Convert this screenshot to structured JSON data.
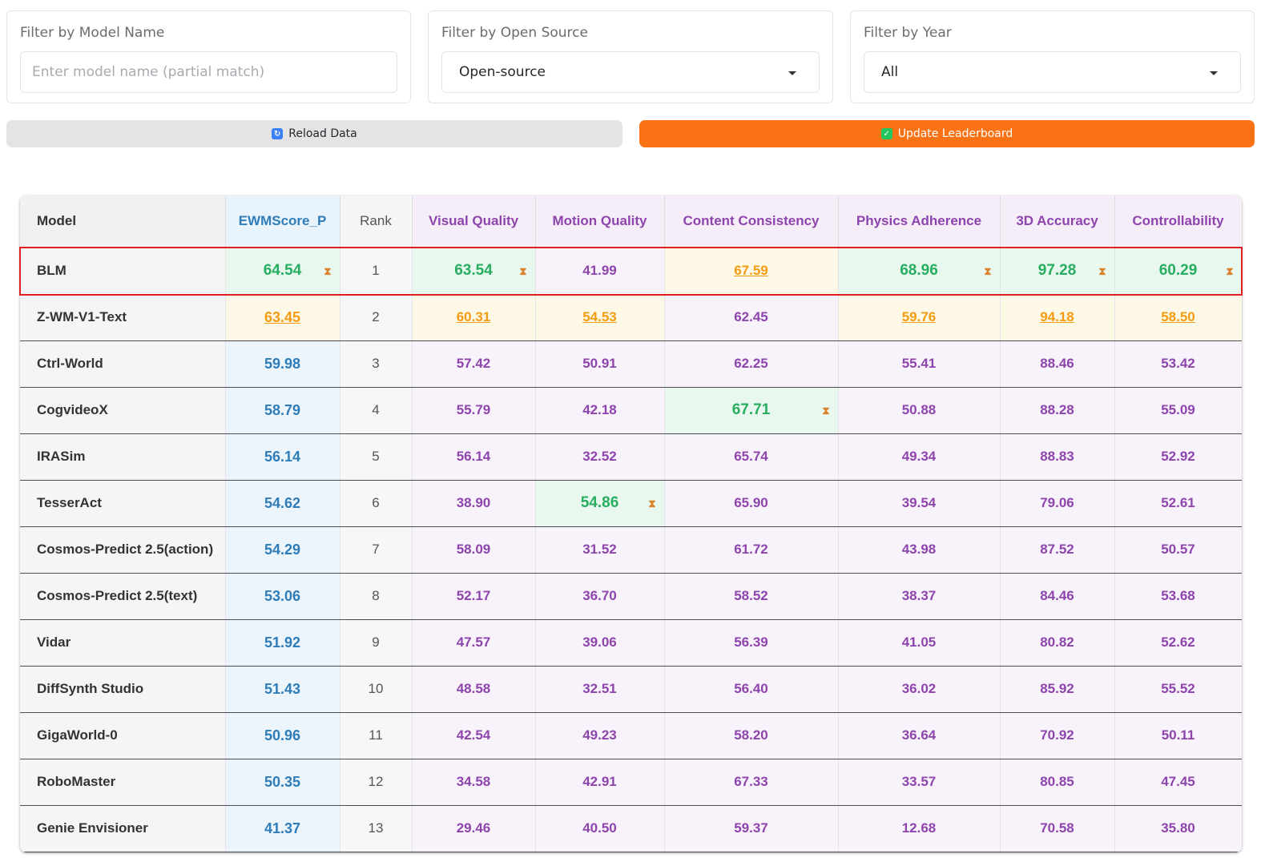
{
  "filters": {
    "model_name": {
      "label": "Filter by Model Name",
      "placeholder": "Enter model name (partial match)",
      "value": ""
    },
    "open_source": {
      "label": "Filter by Open Source",
      "value": "Open-source"
    },
    "year": {
      "label": "Filter by Year",
      "value": "All"
    }
  },
  "buttons": {
    "reload": "Reload Data",
    "update": "Update Leaderboard"
  },
  "table": {
    "columns": [
      "Model",
      "EWMScore_P",
      "Rank",
      "Visual Quality",
      "Motion Quality",
      "Content Consistency",
      "Physics Adherence",
      "3D Accuracy",
      "Controllability"
    ],
    "rows": [
      {
        "model": "BLM",
        "ewm": "64.54",
        "rank": "1",
        "metrics": [
          "63.54",
          "41.99",
          "67.59",
          "68.96",
          "97.28",
          "60.29"
        ]
      },
      {
        "model": "Z-WM-V1-Text",
        "ewm": "63.45",
        "rank": "2",
        "metrics": [
          "60.31",
          "54.53",
          "62.45",
          "59.76",
          "94.18",
          "58.50"
        ]
      },
      {
        "model": "Ctrl-World",
        "ewm": "59.98",
        "rank": "3",
        "metrics": [
          "57.42",
          "50.91",
          "62.25",
          "55.41",
          "88.46",
          "53.42"
        ]
      },
      {
        "model": "CogvideoX",
        "ewm": "58.79",
        "rank": "4",
        "metrics": [
          "55.79",
          "42.18",
          "67.71",
          "50.88",
          "88.28",
          "55.09"
        ]
      },
      {
        "model": "IRASim",
        "ewm": "56.14",
        "rank": "5",
        "metrics": [
          "56.14",
          "32.52",
          "65.74",
          "49.34",
          "88.83",
          "52.92"
        ]
      },
      {
        "model": "TesserAct",
        "ewm": "54.62",
        "rank": "6",
        "metrics": [
          "38.90",
          "54.86",
          "65.90",
          "39.54",
          "79.06",
          "52.61"
        ]
      },
      {
        "model": "Cosmos-Predict 2.5(action)",
        "ewm": "54.29",
        "rank": "7",
        "metrics": [
          "58.09",
          "31.52",
          "61.72",
          "43.98",
          "87.52",
          "50.57"
        ]
      },
      {
        "model": "Cosmos-Predict 2.5(text)",
        "ewm": "53.06",
        "rank": "8",
        "metrics": [
          "52.17",
          "36.70",
          "58.52",
          "38.37",
          "84.46",
          "53.68"
        ]
      },
      {
        "model": "Vidar",
        "ewm": "51.92",
        "rank": "9",
        "metrics": [
          "47.57",
          "39.06",
          "56.39",
          "41.05",
          "80.82",
          "52.62"
        ]
      },
      {
        "model": "DiffSynth Studio",
        "ewm": "51.43",
        "rank": "10",
        "metrics": [
          "48.58",
          "32.51",
          "56.40",
          "36.02",
          "85.92",
          "55.52"
        ]
      },
      {
        "model": "GigaWorld-0",
        "ewm": "50.96",
        "rank": "11",
        "metrics": [
          "42.54",
          "49.23",
          "58.20",
          "36.64",
          "70.92",
          "50.11"
        ]
      },
      {
        "model": "RoboMaster",
        "ewm": "50.35",
        "rank": "12",
        "metrics": [
          "34.58",
          "42.91",
          "67.33",
          "33.57",
          "80.85",
          "47.45"
        ]
      },
      {
        "model": "Genie Envisioner",
        "ewm": "41.37",
        "rank": "13",
        "metrics": [
          "29.46",
          "40.50",
          "59.37",
          "12.68",
          "70.58",
          "35.80"
        ]
      }
    ],
    "best": {
      "ewm": 0,
      "metrics": [
        0,
        5,
        3,
        0,
        0,
        0
      ]
    },
    "second": {
      "ewm": 1,
      "metrics": [
        1,
        1,
        0,
        1,
        1,
        1
      ]
    },
    "highlighted_row": 0
  }
}
